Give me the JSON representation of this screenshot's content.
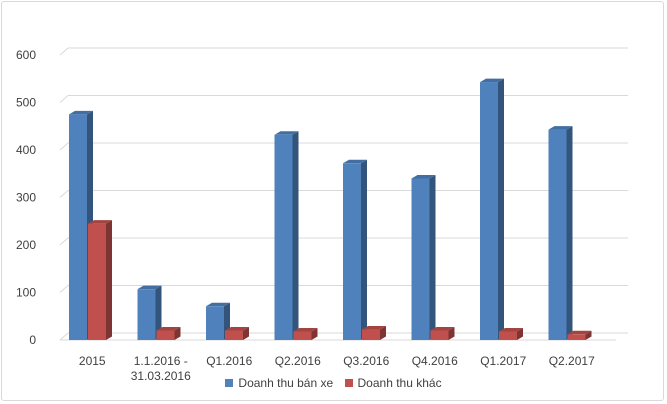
{
  "chart_data": {
    "type": "bar",
    "title": "",
    "xlabel": "",
    "ylabel": "",
    "ylim": [
      0,
      600
    ],
    "yticks": [
      0,
      100,
      200,
      300,
      400,
      500,
      600
    ],
    "grid": true,
    "legend_position": "bottom",
    "categories": [
      [
        "2015"
      ],
      [
        "1.1.2016 -",
        "31.03.2016"
      ],
      [
        "Q1.2016"
      ],
      [
        "Q2.2016"
      ],
      [
        "Q3.2016"
      ],
      [
        "Q4.2016"
      ],
      [
        "Q1.2017"
      ],
      [
        "Q2.2017"
      ]
    ],
    "series": [
      {
        "name": "Doanh thu bán xe",
        "color": "#4f81bd",
        "values": [
          475,
          107,
          71,
          432,
          372,
          340,
          543,
          443
        ]
      },
      {
        "name": "Doanh thu khác",
        "color": "#c0504d",
        "values": [
          245,
          20,
          20,
          18,
          22,
          20,
          18,
          12
        ]
      }
    ]
  }
}
